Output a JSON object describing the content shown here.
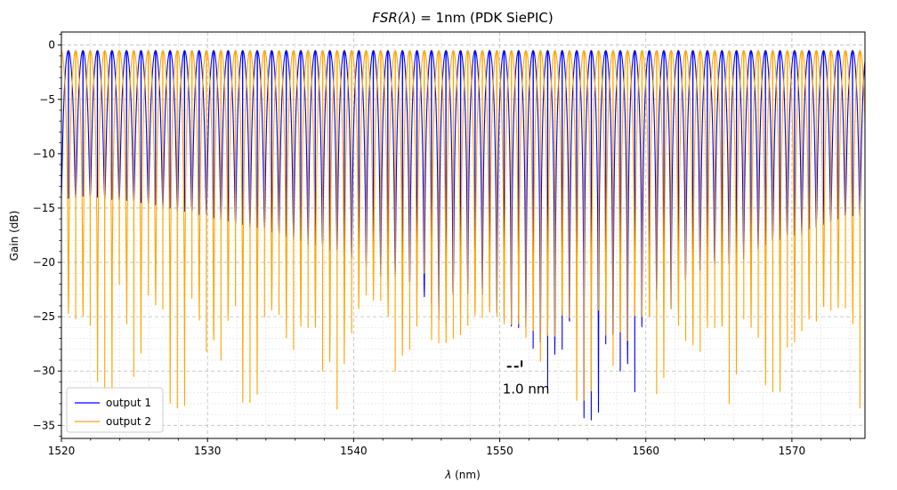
{
  "chart_data": {
    "type": "line",
    "title_prefix": "FSR(",
    "title_lambda": "λ",
    "title_suffix": ") = 1nm (PDK SiePIC)",
    "xlabel_symbol": "λ",
    "xlabel_unit": " (nm)",
    "ylabel": "Gain (dB)",
    "xlim": [
      1520,
      1575
    ],
    "ylim": [
      -36.2,
      1.2
    ],
    "xticks": [
      1520,
      1530,
      1540,
      1550,
      1560,
      1570
    ],
    "yticks": [
      0,
      -5,
      -10,
      -15,
      -20,
      -25,
      -30,
      -35
    ],
    "ytick_labels": [
      "0",
      "−5",
      "−10",
      "−15",
      "−20",
      "−25",
      "−30",
      "−35"
    ],
    "grid": true,
    "legend_position": "lower-left",
    "series": [
      {
        "name": "output 1",
        "color": "#0000ff",
        "peak_db": -0.5,
        "first_dip_nm": 1520.48,
        "period_nm": 0.994,
        "dips_db": [
          -14.1,
          -13.9,
          -14.0,
          -14.2,
          -14.3,
          -14.5,
          -14.7,
          -15.0,
          -15.3,
          -15.6,
          -15.9,
          -16.2,
          -16.5,
          -16.8,
          -17.2,
          -17.6,
          -18.0,
          -18.4,
          -18.9,
          -19.4,
          -20.0,
          -20.6,
          -21.3,
          -22.0,
          -22.8,
          -23.8,
          -25.6,
          -23.0,
          -22.6,
          -24.0,
          -25.2,
          -26.0,
          -27.9,
          -31.5,
          -28.0,
          -25.8,
          -34.5,
          -27.5,
          -30.0,
          -31.9,
          -23.5,
          -24.4,
          -22.0,
          -21.5,
          -20.6,
          -20.2,
          -19.8,
          -19.1,
          -18.4,
          -17.9,
          -17.5,
          -16.9,
          -16.5,
          -16.0,
          -15.7,
          -15.2
        ]
      },
      {
        "name": "output 2",
        "color": "#ffa500",
        "peak_db": -0.5,
        "first_dip_nm": 1520.98,
        "period_nm": 0.994,
        "dips_db": [
          -25.2,
          -25.8,
          -31.8,
          -22.0,
          -30.5,
          -23.0,
          -24.3,
          -33.4,
          -23.3,
          -28.2,
          -29.0,
          -24.0,
          -32.9,
          -25.0,
          -24.8,
          -28.0,
          -26.0,
          -30.0,
          -33.5,
          -26.5,
          -23.0,
          -23.5,
          -30.0,
          -28.0,
          -21.0,
          -27.4,
          -27.0,
          -25.8,
          -25.1,
          -25.0,
          -25.7,
          -26.9,
          -29.1,
          -26.8,
          -25.1,
          -32.7,
          -24.4,
          -29.5,
          -27.2,
          -25.0,
          -32.1,
          -24.3,
          -27.2,
          -28.2,
          -26.0,
          -33.0,
          -25.2,
          -26.9,
          -31.9,
          -27.8,
          -26.3,
          -25.4,
          -24.4,
          -24.2,
          -33.4,
          -25.0
        ]
      }
    ],
    "annotation": {
      "text": "1.0 nm",
      "x_start": 1550.5,
      "x_end": 1551.5,
      "y": -29.6
    }
  }
}
